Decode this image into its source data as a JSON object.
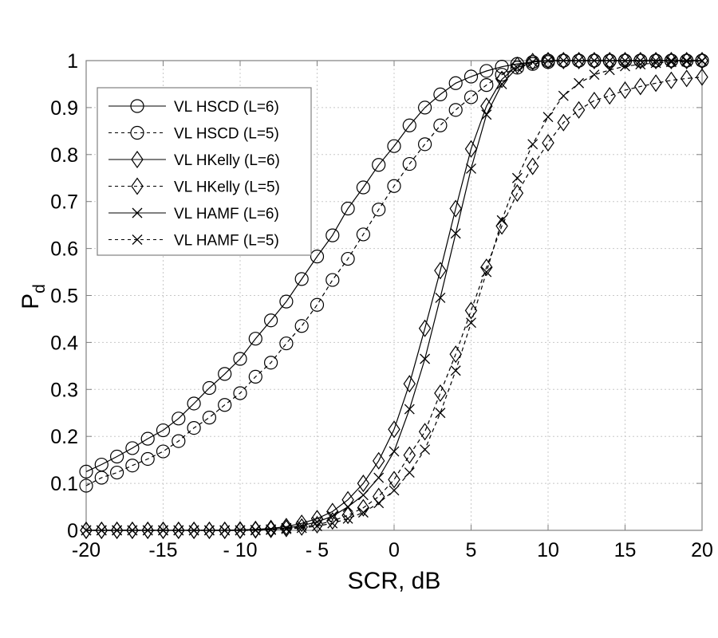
{
  "chart_data": {
    "type": "line",
    "title": "",
    "xlabel": "SCR, dB",
    "ylabel": "P",
    "ylabel_subscript": "d",
    "xlim": [
      -20,
      20
    ],
    "ylim": [
      0,
      1
    ],
    "xticks": [
      "-20",
      "-15",
      "- 10",
      "- 5",
      "0",
      "5",
      "10",
      "15",
      "20"
    ],
    "xtick_values": [
      -20,
      -15,
      -10,
      -5,
      0,
      5,
      10,
      15,
      20
    ],
    "yticks": [
      "0",
      "0.1",
      "0.2",
      "0.3",
      "0.4",
      "0.5",
      "0.6",
      "0.7",
      "0.8",
      "0.9",
      "1"
    ],
    "ytick_values": [
      0,
      0.1,
      0.2,
      0.3,
      0.4,
      0.5,
      0.6,
      0.7,
      0.8,
      0.9,
      1
    ],
    "grid": true,
    "legend_position": "top-left",
    "x": [
      -20,
      -19,
      -18,
      -17,
      -16,
      -15,
      -14,
      -13,
      -12,
      -11,
      -10,
      -9,
      -8,
      -7,
      -6,
      -5,
      -4,
      -3,
      -2,
      -1,
      0,
      1,
      2,
      3,
      4,
      5,
      6,
      7,
      8,
      9,
      10,
      11,
      12,
      13,
      14,
      15,
      16,
      17,
      18,
      19,
      20
    ],
    "series": [
      {
        "name": "VL HSCD (L=6)",
        "marker": "circle",
        "line": "solid",
        "values": [
          0.125,
          0.14,
          0.157,
          0.175,
          0.195,
          0.213,
          0.238,
          0.27,
          0.303,
          0.333,
          0.365,
          0.408,
          0.447,
          0.487,
          0.535,
          0.583,
          0.628,
          0.685,
          0.73,
          0.778,
          0.818,
          0.862,
          0.9,
          0.928,
          0.952,
          0.966,
          0.978,
          0.987,
          0.993,
          0.997,
          1,
          1,
          1,
          1,
          1,
          1,
          1,
          1,
          1,
          1,
          1
        ]
      },
      {
        "name": "VL HSCD (L=5)",
        "marker": "circle",
        "line": "dashed",
        "values": [
          0.095,
          0.112,
          0.123,
          0.138,
          0.152,
          0.168,
          0.19,
          0.218,
          0.24,
          0.267,
          0.292,
          0.327,
          0.357,
          0.398,
          0.435,
          0.48,
          0.533,
          0.578,
          0.63,
          0.683,
          0.733,
          0.78,
          0.822,
          0.862,
          0.895,
          0.922,
          0.948,
          0.97,
          0.985,
          0.993,
          0.997,
          1,
          1,
          1,
          1,
          1,
          1,
          1,
          1,
          1,
          1
        ]
      },
      {
        "name": "VL HKelly (L=6)",
        "marker": "diamond",
        "line": "solid",
        "values": [
          0,
          0,
          0,
          0,
          0,
          0,
          0,
          0,
          0,
          0,
          0.001,
          0.002,
          0.004,
          0.008,
          0.015,
          0.025,
          0.04,
          0.065,
          0.1,
          0.148,
          0.215,
          0.312,
          0.43,
          0.553,
          0.685,
          0.812,
          0.903,
          0.96,
          0.99,
          0.998,
          1,
          1,
          1,
          1,
          1,
          1,
          1,
          1,
          1,
          1,
          1
        ]
      },
      {
        "name": "VL HKelly (L=5)",
        "marker": "diamond",
        "line": "dashed",
        "values": [
          0,
          0,
          0,
          0,
          0,
          0,
          0,
          0,
          0,
          0,
          0,
          0.001,
          0.002,
          0.004,
          0.007,
          0.012,
          0.02,
          0.032,
          0.048,
          0.072,
          0.108,
          0.16,
          0.21,
          0.292,
          0.375,
          0.468,
          0.56,
          0.648,
          0.718,
          0.775,
          0.825,
          0.868,
          0.895,
          0.915,
          0.925,
          0.937,
          0.945,
          0.952,
          0.958,
          0.962,
          0.965
        ]
      },
      {
        "name": "VL HAMF (L=6)",
        "marker": "x",
        "line": "solid",
        "values": [
          0,
          0,
          0,
          0,
          0,
          0,
          0,
          0,
          0,
          0,
          0,
          0.001,
          0.002,
          0.005,
          0.01,
          0.018,
          0.03,
          0.05,
          0.075,
          0.112,
          0.168,
          0.258,
          0.365,
          0.495,
          0.632,
          0.77,
          0.885,
          0.95,
          0.985,
          0.997,
          1,
          1,
          1,
          1,
          1,
          1,
          1,
          1,
          1,
          1,
          1
        ]
      },
      {
        "name": "VL HAMF (L=5)",
        "marker": "x",
        "line": "dashed",
        "values": [
          0,
          0,
          0,
          0,
          0,
          0,
          0,
          0,
          0,
          0,
          0,
          0,
          0.001,
          0.003,
          0.005,
          0.009,
          0.015,
          0.025,
          0.038,
          0.058,
          0.085,
          0.123,
          0.172,
          0.25,
          0.34,
          0.442,
          0.55,
          0.66,
          0.75,
          0.822,
          0.88,
          0.925,
          0.952,
          0.97,
          0.98,
          0.988,
          0.992,
          0.995,
          0.997,
          0.998,
          0.999
        ]
      }
    ]
  }
}
